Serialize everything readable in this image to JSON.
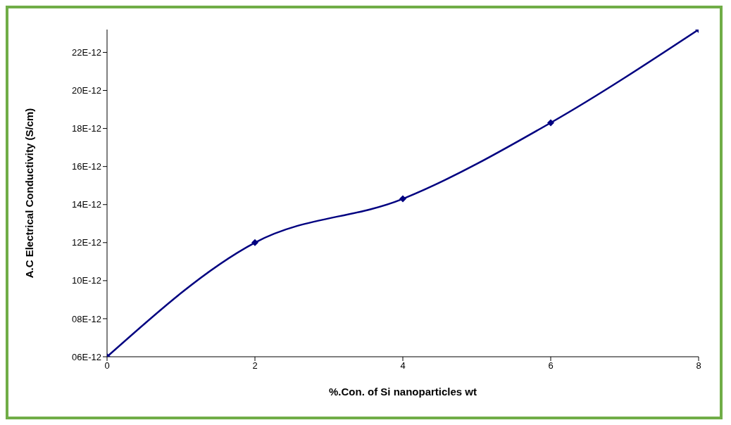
{
  "chart_data": {
    "type": "line",
    "xlabel": "%.Con. of Si nanoparticles wt",
    "ylabel": "A.C Electrical Conductivity (S/cm)",
    "x": [
      0,
      2,
      4,
      6,
      8
    ],
    "series": [
      {
        "color": "#000080",
        "values": [
          6e-12,
          1.2e-11,
          1.43e-11,
          1.83e-11,
          2.32e-11
        ]
      }
    ],
    "xlim": [
      0,
      8
    ],
    "xticks": [
      0,
      2,
      4,
      6,
      8
    ],
    "ylim": [
      6e-12,
      2.32e-11
    ],
    "yticks": [
      {
        "value": 6e-12,
        "label": "06E-12"
      },
      {
        "value": 8e-12,
        "label": "08E-12"
      },
      {
        "value": 1e-11,
        "label": "10E-12"
      },
      {
        "value": 1.2e-11,
        "label": "12E-12"
      },
      {
        "value": 1.4e-11,
        "label": "14E-12"
      },
      {
        "value": 1.6e-11,
        "label": "16E-12"
      },
      {
        "value": 1.8e-11,
        "label": "18E-12"
      },
      {
        "value": 2e-11,
        "label": "20E-12"
      },
      {
        "value": 2.2e-11,
        "label": "22E-12"
      }
    ],
    "grid": false,
    "legend": false,
    "marker": "diamond",
    "line_style": "solid"
  }
}
